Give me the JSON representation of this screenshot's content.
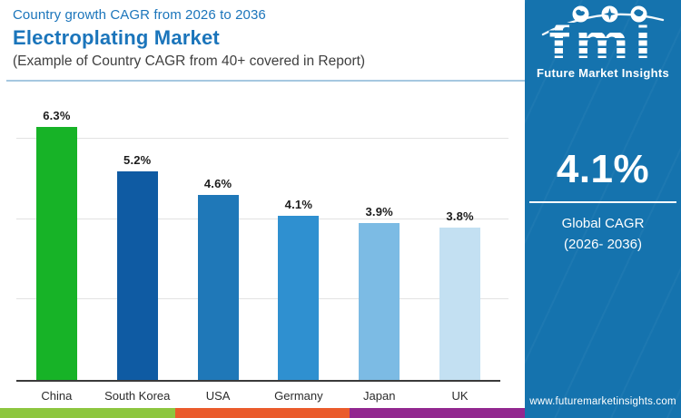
{
  "header": {
    "kicker": "Country growth CAGR from 2026 to 2036",
    "title": "Electroplating Market",
    "subtitle": "(Example of Country CAGR from 40+ covered in Report)"
  },
  "chart_data": {
    "type": "bar",
    "title": "Country growth CAGR from 2026 to 2036",
    "categories": [
      "China",
      "South Korea",
      "USA",
      "Germany",
      "Japan",
      "UK"
    ],
    "values": [
      6.3,
      5.2,
      4.6,
      4.1,
      3.9,
      3.8
    ],
    "value_labels": [
      "6.3%",
      "5.2%",
      "4.6%",
      "4.1%",
      "3.9%",
      "3.8%"
    ],
    "unit": "%",
    "xlabel": "",
    "ylabel": "",
    "ylim": [
      0,
      6.8
    ],
    "gridlines": [
      2,
      4,
      6
    ],
    "grid": "horizontal-only",
    "legend": "none",
    "bar_colors": [
      "#17B327",
      "#0F5BA3",
      "#1F78B8",
      "#2F90D0",
      "#7CBBE4",
      "#C3E0F2"
    ]
  },
  "panel": {
    "bg_color": "#1573AE",
    "logo_text": "fmi",
    "logo_caption": "Future Market Insights",
    "stat_value": "4.1%",
    "stat_label_1": "Global CAGR",
    "stat_label_2": "(2026- 2036)",
    "website": "www.futuremarketinsights.com"
  },
  "footer": {
    "stripe_colors": [
      "#8DC63F",
      "#EA5B2B",
      "#92278F"
    ]
  },
  "colors": {
    "title_blue": "#1B75BB",
    "axis": "#3A3A3A",
    "gridline": "#E2E2E2",
    "value_text": "#1C1C1C"
  }
}
